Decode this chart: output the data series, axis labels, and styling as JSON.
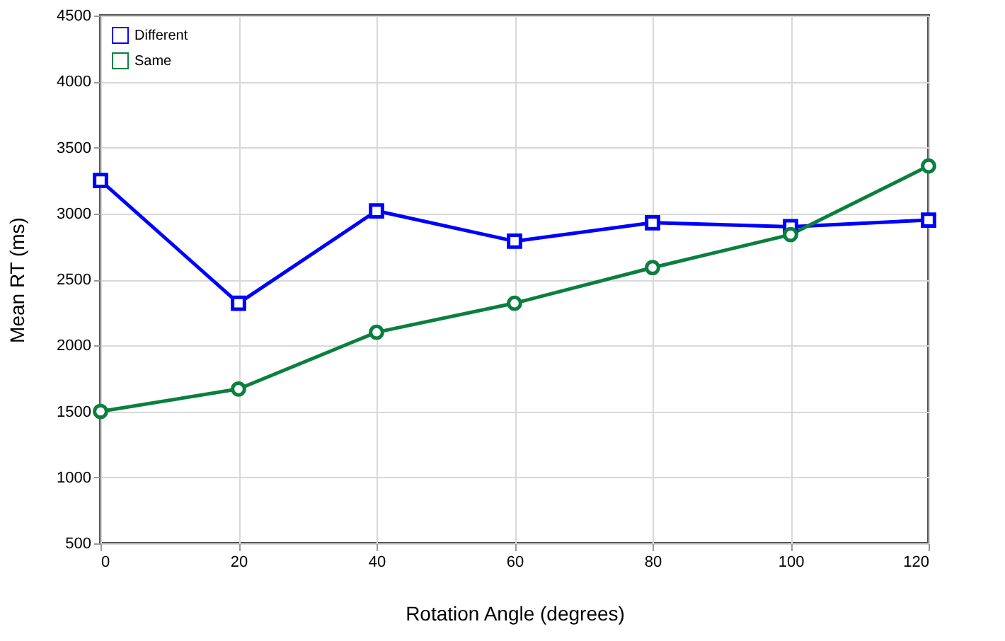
{
  "chart_data": {
    "type": "line",
    "xlabel": "Rotation Angle (degrees)",
    "ylabel": "Mean RT (ms)",
    "x": [
      0,
      20,
      40,
      60,
      80,
      100,
      120
    ],
    "series": [
      {
        "name": "Different",
        "color": "#0000ff",
        "marker": "square",
        "values": [
          3250,
          2320,
          3020,
          2790,
          2930,
          2900,
          2950
        ]
      },
      {
        "name": "Same",
        "color": "#0a7f3f",
        "marker": "circle",
        "values": [
          1500,
          1670,
          2100,
          2320,
          2590,
          2840,
          3360
        ]
      }
    ],
    "xlim": [
      0,
      120
    ],
    "xticks": [
      0,
      20,
      40,
      60,
      80,
      100,
      120
    ],
    "ylim": [
      500,
      4500
    ],
    "yticks": [
      500,
      1000,
      1500,
      2000,
      2500,
      3000,
      3500,
      4000,
      4500
    ],
    "grid": true,
    "legend": "top left",
    "line_style": "solid"
  }
}
